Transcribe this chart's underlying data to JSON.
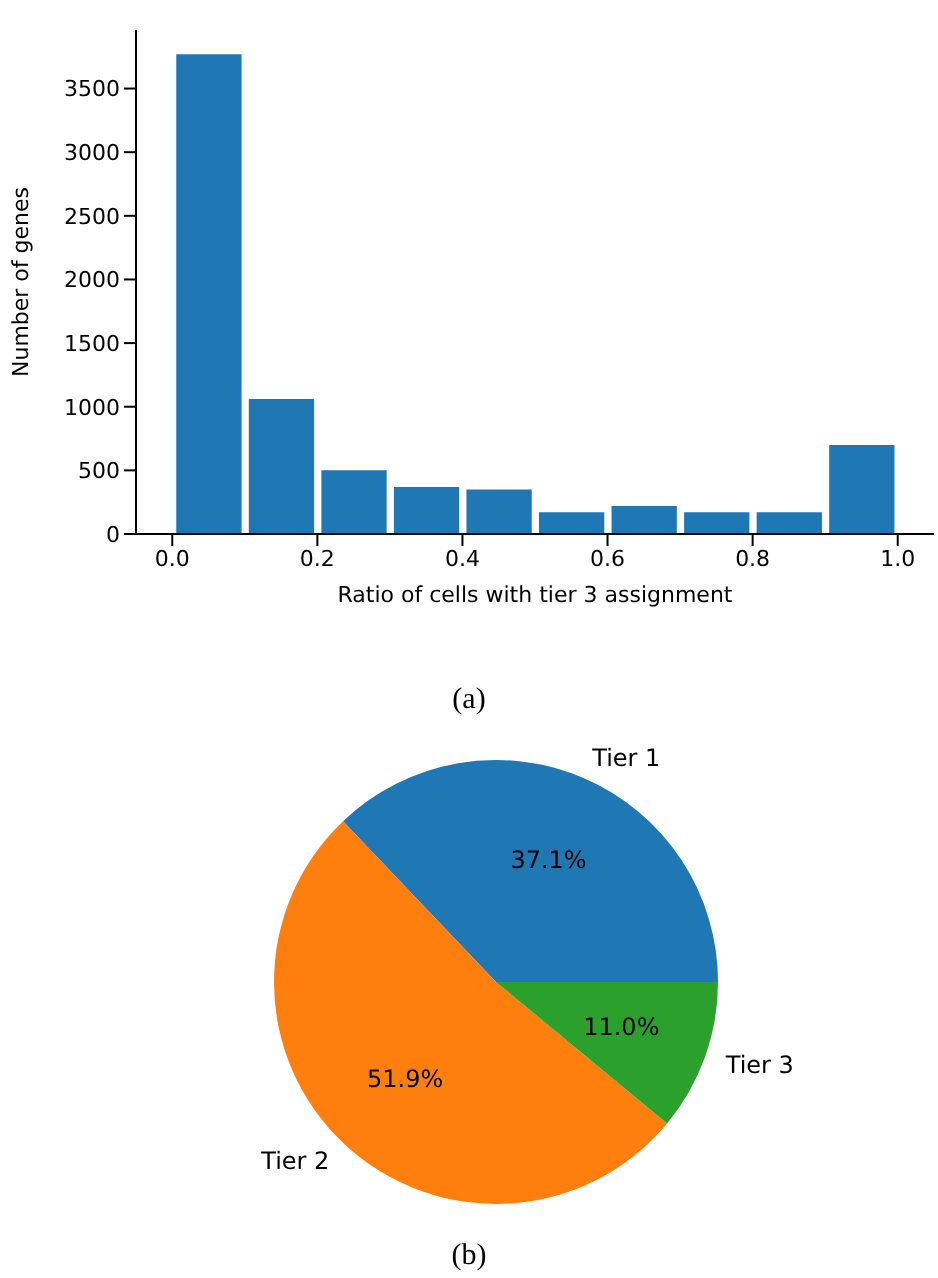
{
  "chart_data": [
    {
      "type": "histogram",
      "xlabel": "Ratio of cells with tier 3 assignment",
      "ylabel": "Number of genes",
      "bins": [
        0,
        0.1,
        0.2,
        0.3,
        0.4,
        0.5,
        0.6,
        0.7,
        0.8,
        0.9,
        1.0
      ],
      "values": [
        3770,
        1060,
        500,
        370,
        350,
        170,
        220,
        170,
        170,
        700
      ],
      "color": "#1f77b4",
      "xlim": [
        -0.05,
        1.05
      ],
      "xticks": [
        {
          "value": 0,
          "label": "0.0"
        },
        0.2,
        0.4,
        0.6,
        0.8,
        {
          "value": 1,
          "label": "1.0"
        }
      ],
      "ylim": [
        0,
        3960
      ],
      "yticks": [
        0,
        500,
        1000,
        1500,
        2000,
        2500,
        3000,
        3500
      ],
      "grid": false,
      "legend": false,
      "annotations": [
        "(a)"
      ]
    },
    {
      "type": "pie",
      "categories": [
        "Tier 1",
        "Tier 2",
        "Tier 3"
      ],
      "values": [
        37.1,
        51.9,
        11.0
      ],
      "colors": [
        "#1f77b4",
        "#ff7f0e",
        "#2ca02c"
      ],
      "value_labels": [
        "37.1%",
        "51.9%",
        "11.0%"
      ],
      "legend": false,
      "annotations": [
        "(b)"
      ]
    }
  ]
}
